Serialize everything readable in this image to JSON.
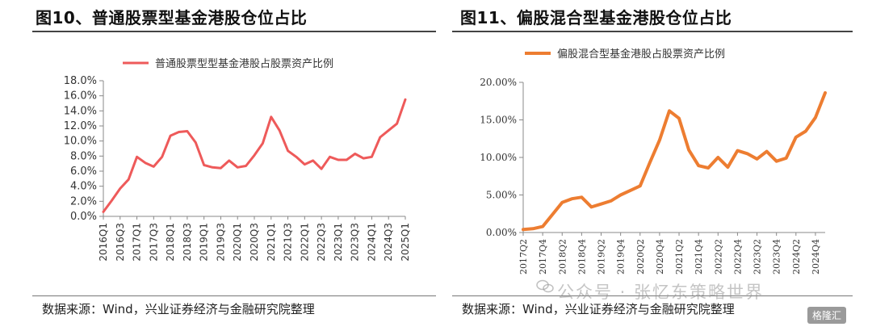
{
  "charts": [
    {
      "heading": "图10、普通股票型基金港股仓位占比",
      "source": "数据来源：Wind，兴业证券经济与金融研究院整理",
      "chart_data": {
        "type": "line",
        "title": "",
        "legend_position": "top",
        "y_tick_labels": [
          "0.0%",
          "2.0%",
          "4.0%",
          "6.0%",
          "8.0%",
          "10.0%",
          "12.0%",
          "14.0%",
          "16.0%",
          "18.0%"
        ],
        "x_tick_labels": [
          "2016Q1",
          "2016Q3",
          "2017Q1",
          "2017Q3",
          "2018Q1",
          "2018Q3",
          "2019Q1",
          "2019Q3",
          "2020Q1",
          "2020Q3",
          "2021Q1",
          "2021Q3",
          "2022Q1",
          "2022Q3",
          "2023Q1",
          "2023Q3",
          "2024Q1",
          "2024Q3",
          "2025Q1"
        ],
        "ylim": [
          0,
          18
        ],
        "color": "#ee5a5a",
        "grid": false,
        "series": [
          {
            "name": "普通股票型型基金港股占股票资产比例",
            "x": [
              "2016Q1",
              "2016Q2",
              "2016Q3",
              "2016Q4",
              "2017Q1",
              "2017Q2",
              "2017Q3",
              "2017Q4",
              "2018Q1",
              "2018Q2",
              "2018Q3",
              "2018Q4",
              "2019Q1",
              "2019Q2",
              "2019Q3",
              "2019Q4",
              "2020Q1",
              "2020Q2",
              "2020Q3",
              "2020Q4",
              "2021Q1",
              "2021Q2",
              "2021Q3",
              "2021Q4",
              "2022Q1",
              "2022Q2",
              "2022Q3",
              "2022Q4",
              "2023Q1",
              "2023Q2",
              "2023Q3",
              "2023Q4",
              "2024Q1",
              "2024Q2",
              "2024Q3",
              "2024Q4",
              "2025Q1"
            ],
            "values": [
              0.6,
              2.1,
              3.7,
              4.9,
              7.9,
              7.1,
              6.6,
              7.9,
              10.7,
              11.2,
              11.3,
              9.8,
              6.8,
              6.5,
              6.4,
              7.4,
              6.5,
              6.7,
              8.1,
              9.7,
              13.2,
              11.4,
              8.7,
              7.9,
              6.9,
              7.4,
              6.3,
              7.9,
              7.5,
              7.5,
              8.3,
              7.7,
              7.9,
              10.5,
              11.4,
              12.3,
              15.5
            ]
          }
        ]
      }
    },
    {
      "heading": "图11、偏股混合型基金港股仓位占比",
      "source": "数据来源：Wind，兴业证券经济与金融研究院整理",
      "chart_data": {
        "type": "line",
        "title": "",
        "legend_position": "top",
        "y_tick_labels": [
          "0.00%",
          "5.00%",
          "10.00%",
          "15.00%",
          "20.00%"
        ],
        "x_tick_labels": [
          "2017Q2",
          "2017Q4",
          "2018Q2",
          "2018Q4",
          "2019Q2",
          "2019Q4",
          "2020Q2",
          "2020Q4",
          "2021Q2",
          "2021Q4",
          "2022Q2",
          "2022Q4",
          "2023Q2",
          "2023Q4",
          "2024Q2",
          "2024Q4"
        ],
        "ylim": [
          0,
          20
        ],
        "color": "#ed7d31",
        "grid": false,
        "series": [
          {
            "name": "偏股混合型基金港股占股票资产比例",
            "x": [
              "2017Q2",
              "2017Q3",
              "2017Q4",
              "2018Q1",
              "2018Q2",
              "2018Q3",
              "2018Q4",
              "2019Q1",
              "2019Q2",
              "2019Q3",
              "2019Q4",
              "2020Q1",
              "2020Q2",
              "2020Q3",
              "2020Q4",
              "2021Q1",
              "2021Q2",
              "2021Q3",
              "2021Q4",
              "2022Q1",
              "2022Q2",
              "2022Q3",
              "2022Q4",
              "2023Q1",
              "2023Q2",
              "2023Q3",
              "2023Q4",
              "2024Q1",
              "2024Q2",
              "2024Q3",
              "2024Q4",
              "2025Q1"
            ],
            "values": [
              0.4,
              0.5,
              0.8,
              2.4,
              4.0,
              4.5,
              4.7,
              3.4,
              3.8,
              4.2,
              5.0,
              5.6,
              6.2,
              9.3,
              12.3,
              16.2,
              15.2,
              11.0,
              8.9,
              8.6,
              10.0,
              8.7,
              10.9,
              10.5,
              9.8,
              10.8,
              9.5,
              9.9,
              12.7,
              13.5,
              15.3,
              18.6
            ]
          }
        ]
      }
    }
  ],
  "watermark": {
    "text": "公众号 · 张忆东策略世界",
    "badge": "格隆汇"
  }
}
